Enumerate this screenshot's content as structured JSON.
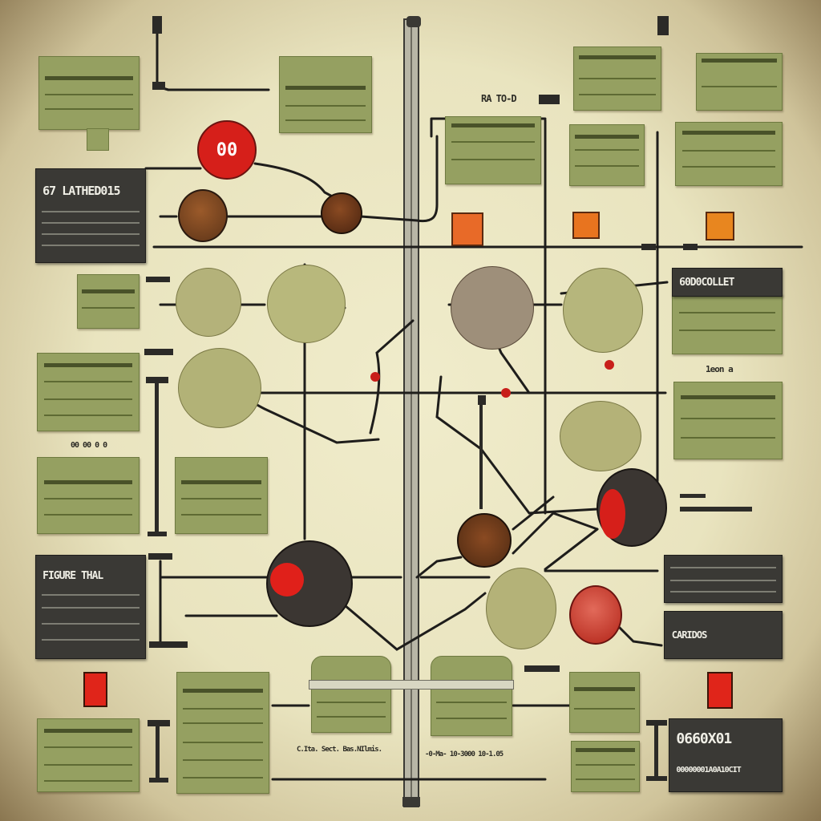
{
  "title_red_disc": "00",
  "dark_panels": {
    "top_left_title": "67 LATHED015",
    "mid_left_title": "FIGURE THAL",
    "top_right_title": "60D0COLLET",
    "bottom_right_small_title": "CARIDOS",
    "bottom_right_big_title": "0660X01",
    "bottom_right_big_sub": "00000001A0A10CIT"
  },
  "labels": {
    "top_center": "RA TO-D",
    "right_small": "1eon  a",
    "left_small": "00 00 0 0",
    "bottom_center_a": "C.Ita. Sect. Bas.NIlmis.",
    "bottom_center_b": "-0-Ma- 10-3000 10-1.05"
  },
  "colors": {
    "background": "#ece8c4",
    "card_green": "#95a061",
    "dark_panel": "#3a3935",
    "accent_red": "#d8201a",
    "wire": "#1e1d1b"
  }
}
